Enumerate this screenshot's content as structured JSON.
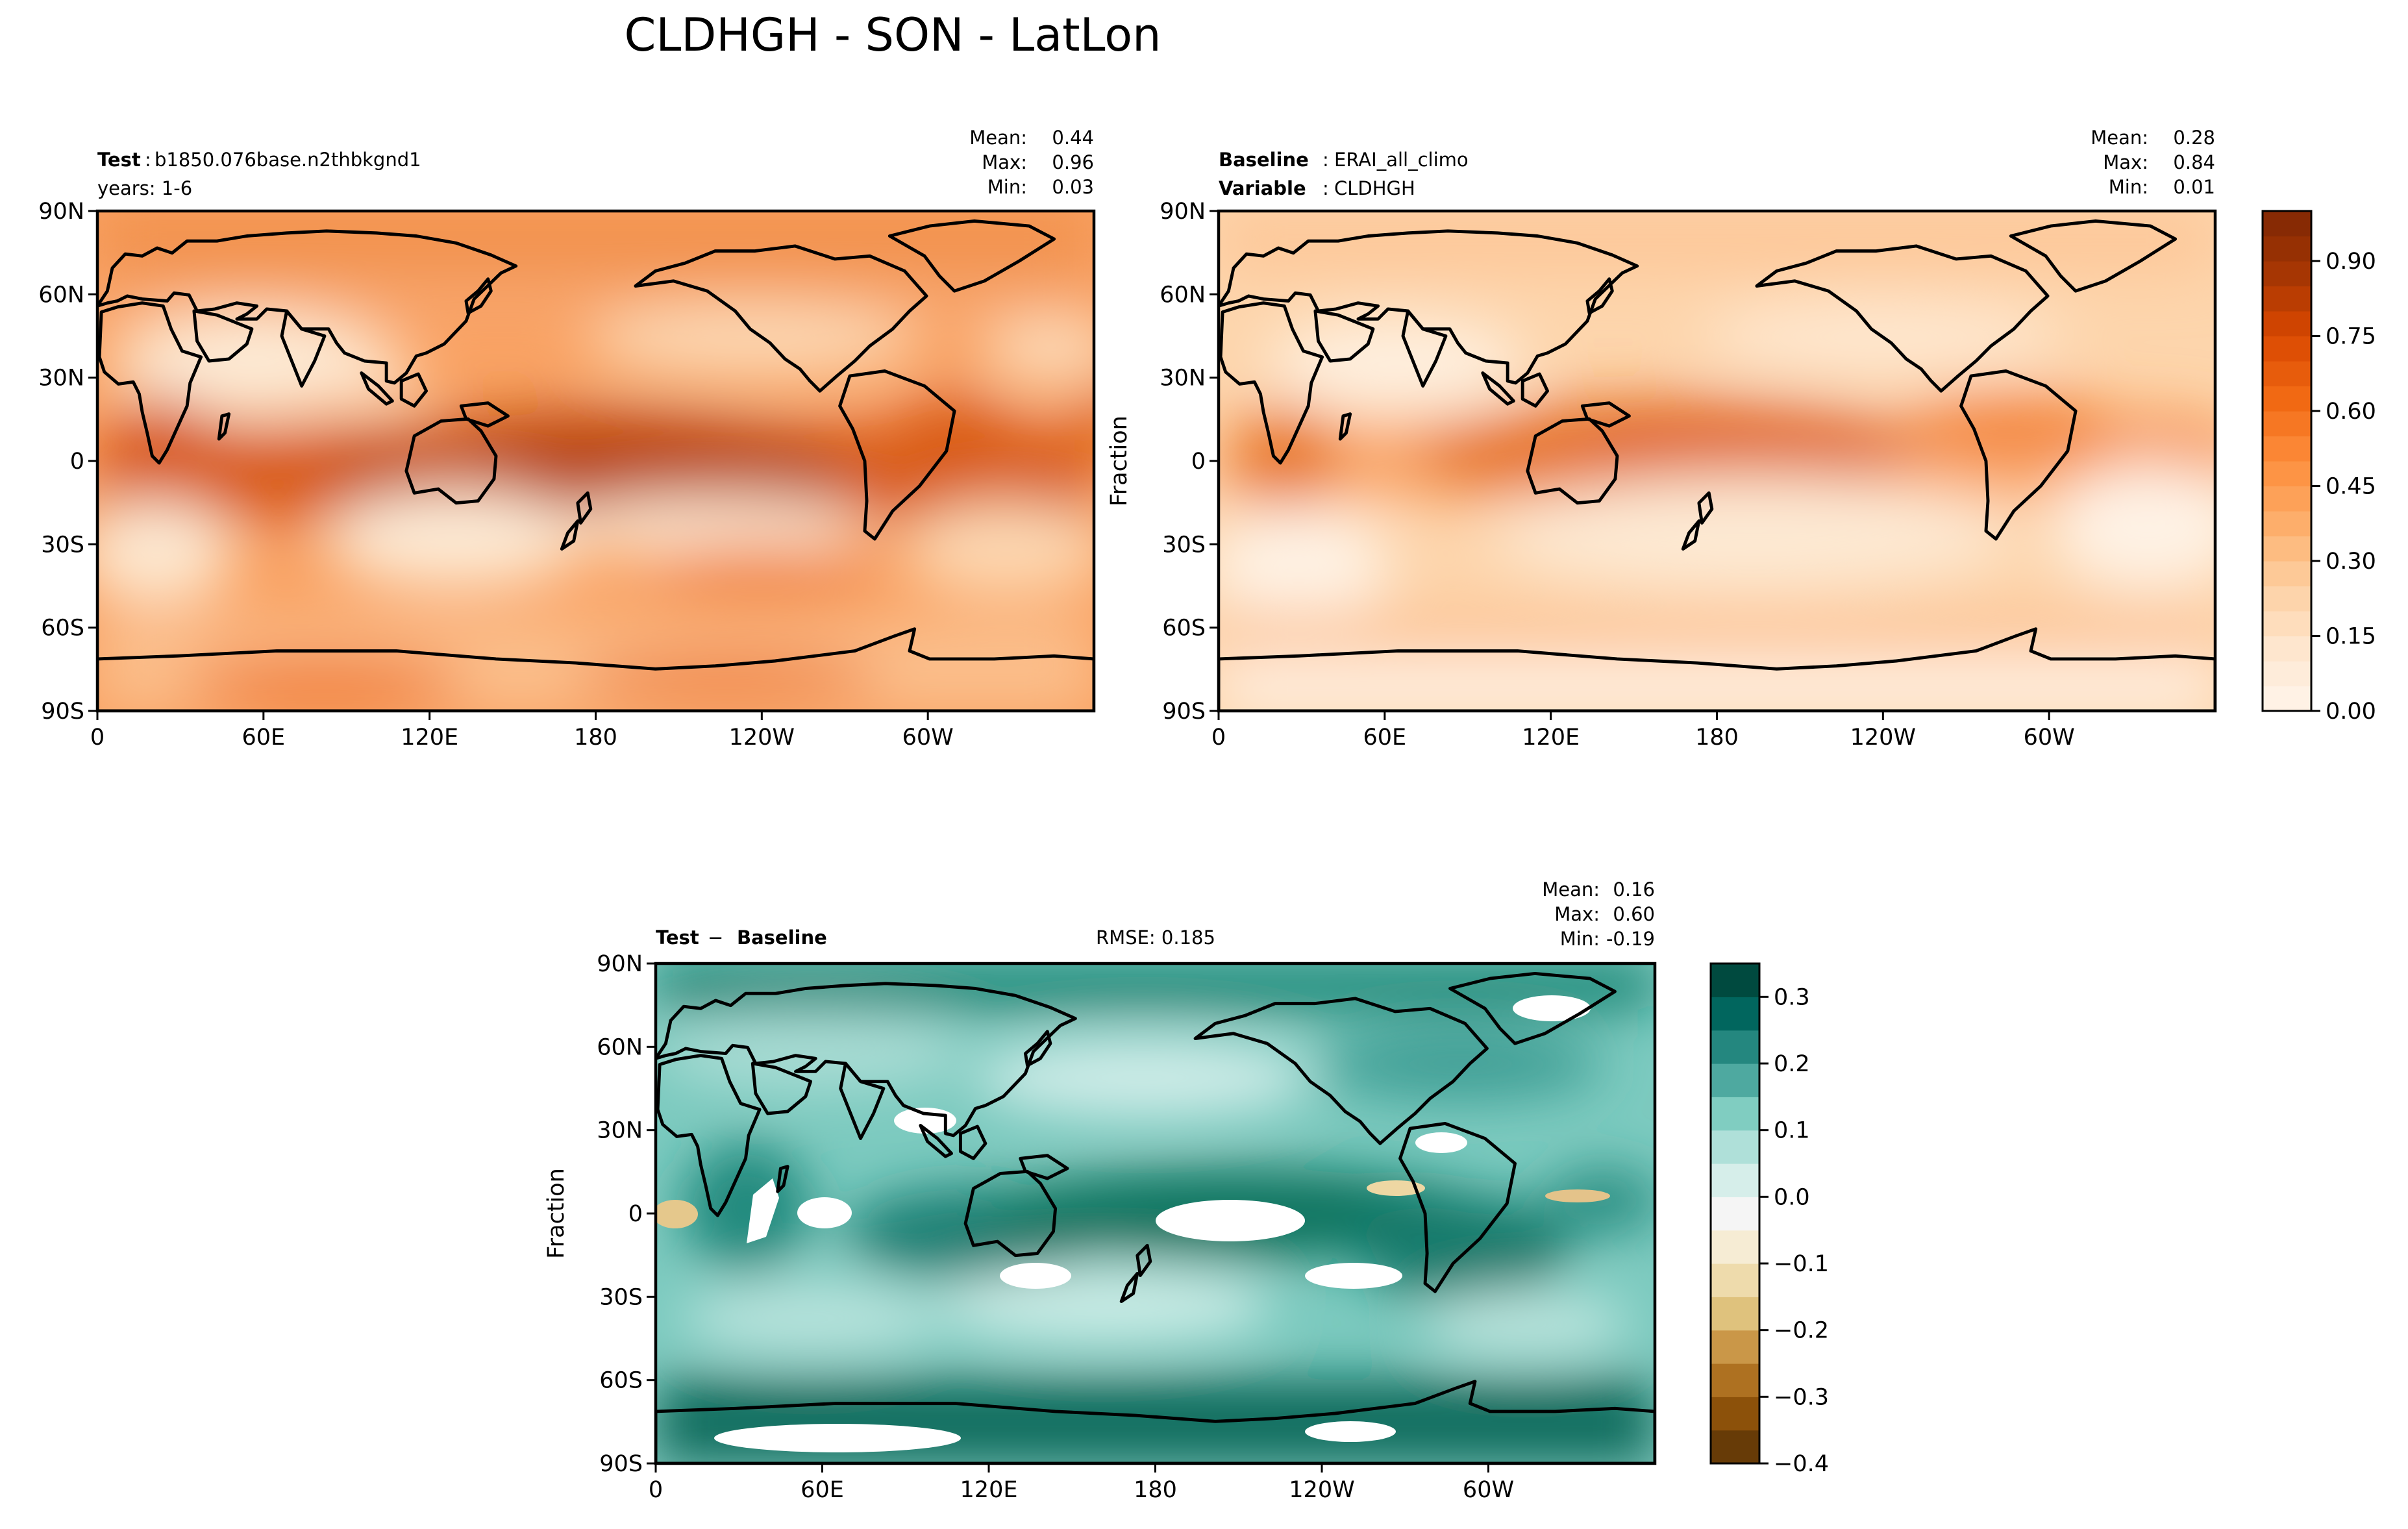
{
  "figure": {
    "title": "CLDHGH - SON - LatLon"
  },
  "chart_data": [
    {
      "type": "heatmap",
      "panel": "test",
      "label_bold": "Test",
      "label_value": "b1850.076base.n2thbkgnd1",
      "sub_label": "years: 1-6",
      "stats": {
        "mean_label": "Mean:",
        "mean": "0.44",
        "max_label": "Max:",
        "max": "0.96",
        "min_label": "Min:",
        "min": "0.03"
      },
      "ylabel": "",
      "x_ticks": [
        "0",
        "60E",
        "120E",
        "180",
        "120W",
        "60W"
      ],
      "y_ticks": [
        "90N",
        "60N",
        "30N",
        "0",
        "30S",
        "60S",
        "90S"
      ],
      "xlim": [
        0,
        360
      ],
      "ylim": [
        -90,
        90
      ],
      "colormap": "Oranges",
      "vrange": [
        0,
        1
      ]
    },
    {
      "type": "heatmap",
      "panel": "baseline",
      "label_bold": "Baseline",
      "label_value": "ERAI_all_climo",
      "label2_bold": "Variable",
      "label2_value": "CLDHGH",
      "stats": {
        "mean_label": "Mean:",
        "mean": "0.28",
        "max_label": "Max:",
        "max": "0.84",
        "min_label": "Min:",
        "min": "0.01"
      },
      "ylabel": "Fraction",
      "x_ticks": [
        "0",
        "60E",
        "120E",
        "180",
        "120W",
        "60W"
      ],
      "y_ticks": [
        "90N",
        "60N",
        "30N",
        "0",
        "30S",
        "60S",
        "90S"
      ],
      "xlim": [
        0,
        360
      ],
      "ylim": [
        -90,
        90
      ],
      "colormap": "Oranges",
      "vrange": [
        0,
        1
      ],
      "colorbar_ticks": [
        "0.00",
        "0.15",
        "0.30",
        "0.45",
        "0.60",
        "0.75",
        "0.90"
      ],
      "colorbar_values": [
        0,
        0.15,
        0.3,
        0.45,
        0.6,
        0.75,
        0.9
      ]
    },
    {
      "type": "heatmap",
      "panel": "difference",
      "label_bold": "Test",
      "label_sep": "−",
      "label_bold2": "Baseline",
      "rmse": "RMSE: 0.185",
      "stats": {
        "mean_label": "Mean:",
        "mean": "0.16",
        "max_label": "Max:",
        "max": "0.60",
        "min_label": "Min:",
        "min": "-0.19"
      },
      "ylabel": "Fraction",
      "x_ticks": [
        "0",
        "60E",
        "120E",
        "180",
        "120W",
        "60W"
      ],
      "y_ticks": [
        "90N",
        "60N",
        "30N",
        "0",
        "30S",
        "60S",
        "90S"
      ],
      "xlim": [
        0,
        360
      ],
      "ylim": [
        -90,
        90
      ],
      "colormap": "BrBG",
      "vrange": [
        -0.4,
        0.35
      ],
      "colorbar_ticks": [
        "0.3",
        "0.2",
        "0.1",
        "0.0",
        "−0.1",
        "−0.2",
        "−0.3",
        "−0.4"
      ],
      "colorbar_values": [
        0.3,
        0.2,
        0.1,
        0.0,
        -0.1,
        -0.2,
        -0.3,
        -0.4
      ]
    }
  ],
  "colors": {
    "oranges": [
      "#fff5eb",
      "#fee6ce",
      "#fdd0a2",
      "#fdae6b",
      "#fd8d3c",
      "#f16913",
      "#d94801",
      "#a63603",
      "#7f2704"
    ],
    "brbg": [
      "#543005",
      "#8c510a",
      "#bf812d",
      "#dfc27d",
      "#f6e8c3",
      "#f5f5f5",
      "#c7eae5",
      "#80cdc1",
      "#35978f",
      "#01665e",
      "#003c30"
    ]
  }
}
